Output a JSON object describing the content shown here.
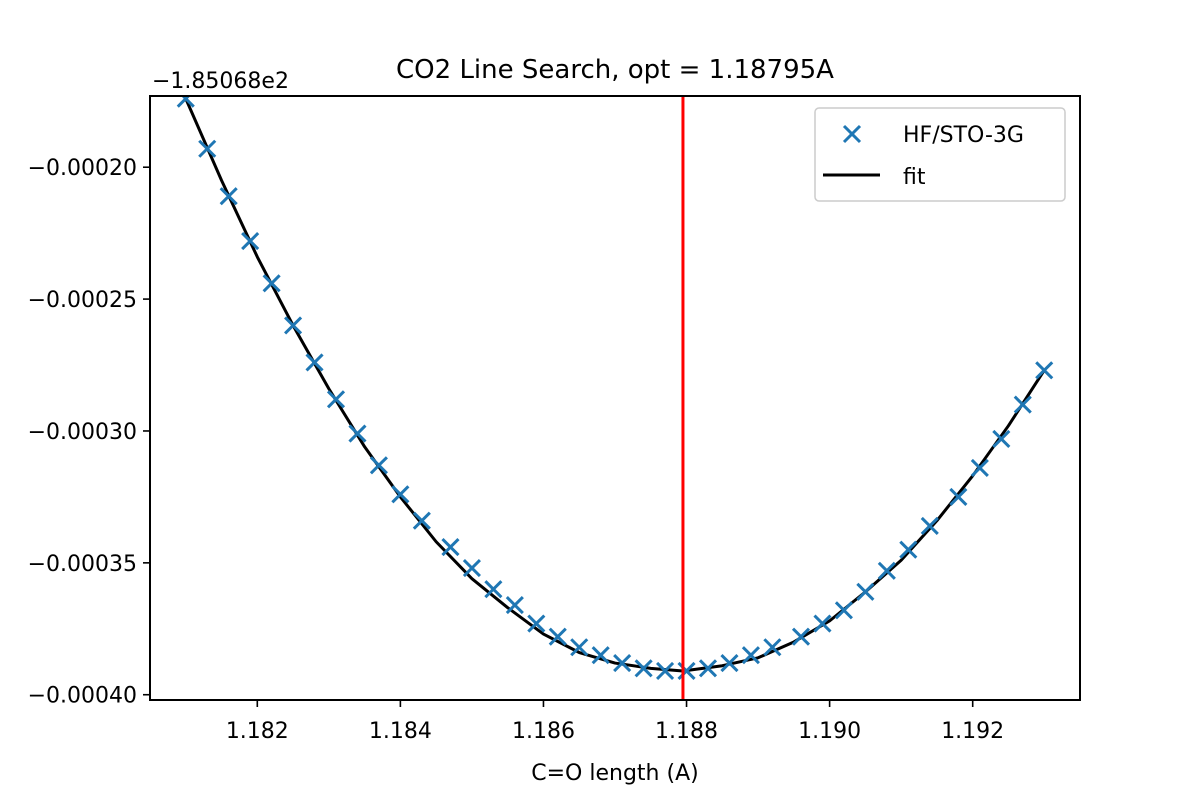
{
  "chart_data": {
    "type": "scatter",
    "title": "CO2 Line Search, opt = 1.18795A",
    "xlabel": "C=O length (A)",
    "ylabel": "",
    "y_offset_label": "−1.85068e2",
    "xlim": [
      1.1805,
      1.1935
    ],
    "ylim": [
      -0.000402,
      -0.000173
    ],
    "x_ticks": [
      1.182,
      1.184,
      1.186,
      1.188,
      1.19,
      1.192
    ],
    "x_tick_labels": [
      "1.182",
      "1.184",
      "1.186",
      "1.188",
      "1.190",
      "1.192"
    ],
    "y_ticks": [
      -0.0002,
      -0.00025,
      -0.0003,
      -0.00035,
      -0.0004
    ],
    "y_tick_labels": [
      "−0.00020",
      "−0.00025",
      "−0.00030",
      "−0.00035",
      "−0.00040"
    ],
    "optimum_x": 1.18795,
    "legend_position": "top-right",
    "grid": false,
    "series": [
      {
        "name": "HF/STO-3G",
        "kind": "scatter",
        "marker": "x",
        "color": "#1f77b4",
        "x": [
          1.181,
          1.1813,
          1.1816,
          1.1819,
          1.1822,
          1.1825,
          1.1828,
          1.1831,
          1.1834,
          1.1837,
          1.184,
          1.1843,
          1.1847,
          1.185,
          1.1853,
          1.1856,
          1.1859,
          1.1862,
          1.1865,
          1.1868,
          1.1871,
          1.1874,
          1.1877,
          1.188,
          1.1883,
          1.1886,
          1.1889,
          1.1892,
          1.1896,
          1.1899,
          1.1902,
          1.1905,
          1.1908,
          1.1911,
          1.1914,
          1.1918,
          1.1921,
          1.1924,
          1.1927,
          1.193
        ],
        "y": [
          -0.000174,
          -0.000193,
          -0.000211,
          -0.000228,
          -0.000244,
          -0.00026,
          -0.000274,
          -0.000288,
          -0.000301,
          -0.000313,
          -0.000324,
          -0.000334,
          -0.000344,
          -0.000352,
          -0.00036,
          -0.000366,
          -0.000373,
          -0.000378,
          -0.000382,
          -0.000385,
          -0.000388,
          -0.00039,
          -0.000391,
          -0.000391,
          -0.00039,
          -0.000388,
          -0.000385,
          -0.000382,
          -0.000378,
          -0.000373,
          -0.000368,
          -0.000361,
          -0.000353,
          -0.000345,
          -0.000336,
          -0.000325,
          -0.000314,
          -0.000303,
          -0.00029,
          -0.000277
        ]
      },
      {
        "name": "fit",
        "kind": "line",
        "color": "#000000",
        "x": [
          1.181,
          1.1815,
          1.182,
          1.1825,
          1.183,
          1.1835,
          1.184,
          1.1845,
          1.185,
          1.1855,
          1.186,
          1.1865,
          1.187,
          1.1875,
          1.18795,
          1.1885,
          1.189,
          1.1895,
          1.19,
          1.1905,
          1.191,
          1.1915,
          1.192,
          1.1925,
          1.193
        ],
        "y": [
          -0.000174,
          -0.000205,
          -0.000234,
          -0.00026,
          -0.000284,
          -0.000306,
          -0.000325,
          -0.000342,
          -0.000356,
          -0.000367,
          -0.000377,
          -0.000384,
          -0.000388,
          -0.00039,
          -0.000391,
          -0.000389,
          -0.000386,
          -0.00038,
          -0.000372,
          -0.000361,
          -0.000349,
          -0.000334,
          -0.000317,
          -0.000298,
          -0.000277
        ]
      }
    ],
    "optimum_line_color": "#ff0000"
  }
}
